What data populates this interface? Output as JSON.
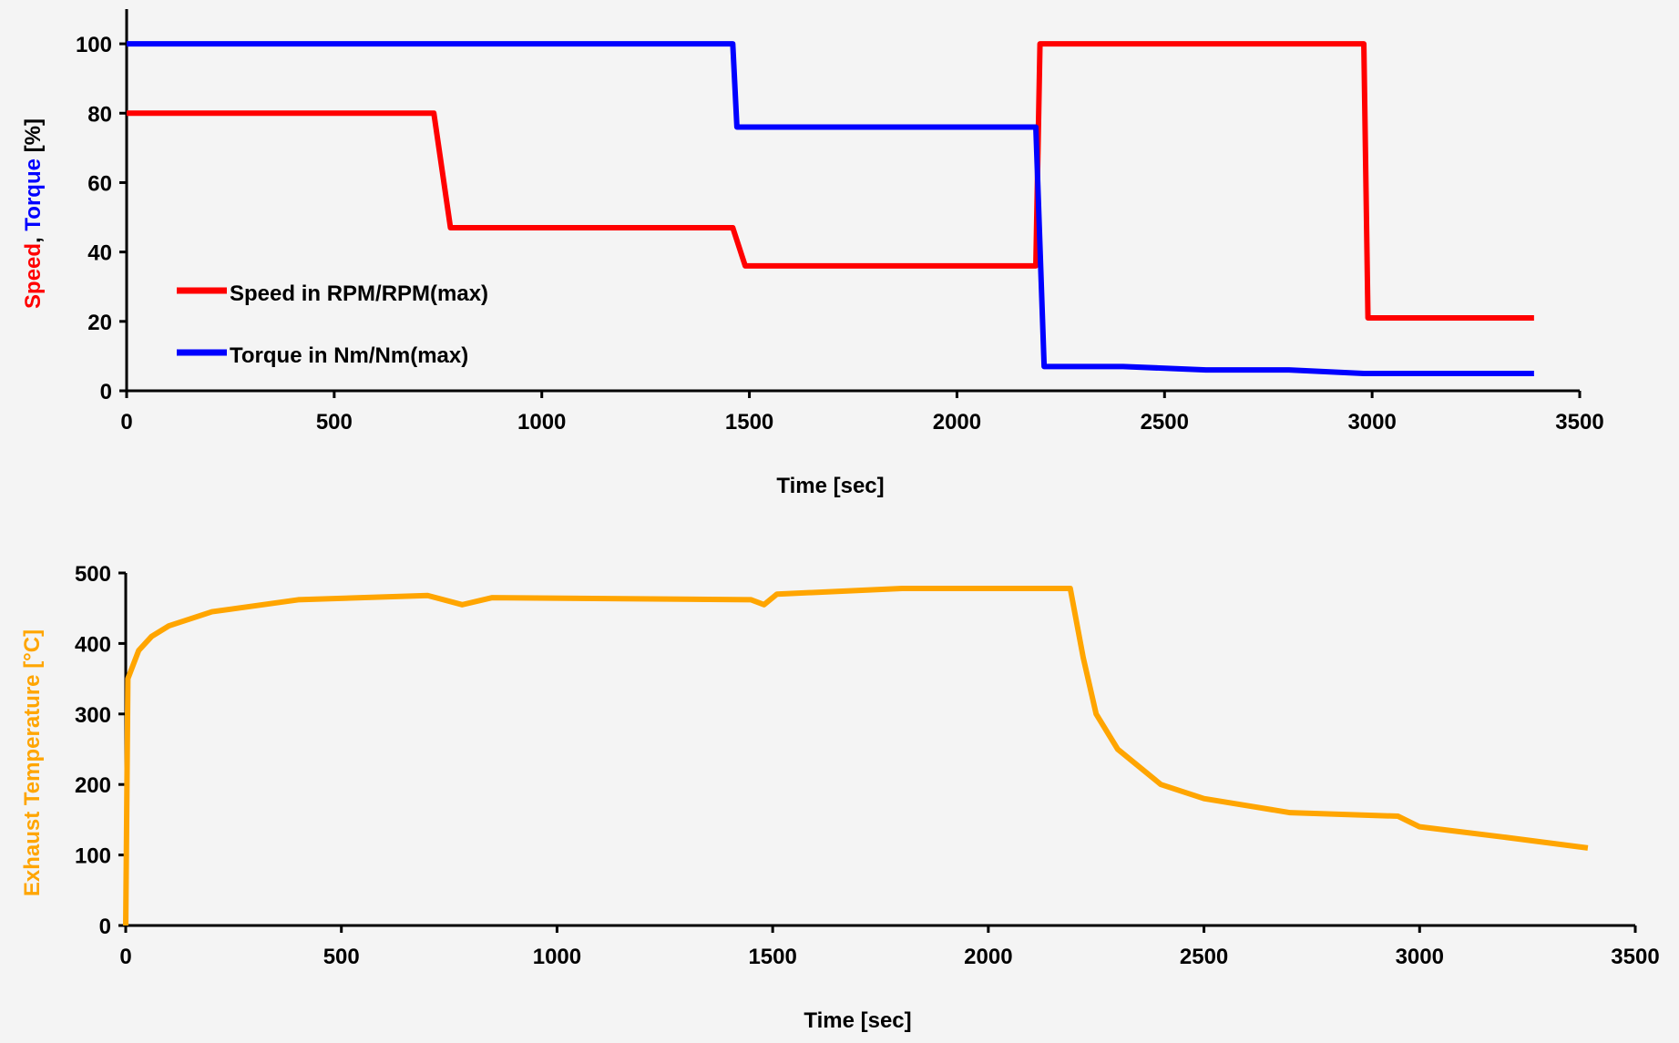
{
  "chart_data": [
    {
      "type": "line",
      "xlabel": "Time [sec]",
      "ylabel": [
        {
          "text": "Speed",
          "color": "#ff0000"
        },
        {
          "text": ", ",
          "color": "#000000"
        },
        {
          "text": "Torque",
          "color": "#0000ff"
        },
        {
          "text": " [%]",
          "color": "#000000"
        }
      ],
      "xlim": [
        0,
        3500
      ],
      "xticks": [
        0,
        500,
        1000,
        1500,
        2000,
        2500,
        3000,
        3500
      ],
      "ylim": [
        0,
        110
      ],
      "yticks": [
        0,
        20,
        40,
        60,
        80,
        100
      ],
      "legend": "lower left",
      "grid": false,
      "series": [
        {
          "name": "Speed in RPM/RPM(max)",
          "color": "#ff0000",
          "x": [
            0,
            740,
            780,
            1460,
            1490,
            2190,
            2200,
            2980,
            2990,
            3390
          ],
          "values": [
            80,
            80,
            47,
            47,
            36,
            36,
            100,
            100,
            21,
            21
          ]
        },
        {
          "name": "Torque in Nm/Nm(max)",
          "color": "#0000ff",
          "x": [
            0,
            1460,
            1470,
            2190,
            2210,
            2400,
            2600,
            2800,
            2980,
            2990,
            3390
          ],
          "values": [
            100,
            100,
            76,
            76,
            7,
            7,
            6,
            6,
            5,
            5,
            5
          ]
        }
      ]
    },
    {
      "type": "line",
      "xlabel": "Time [sec]",
      "ylabel": [
        {
          "text": "Exhaust Temperature [°C]",
          "color": "#ffa500"
        }
      ],
      "xlim": [
        0,
        3500
      ],
      "xticks": [
        0,
        500,
        1000,
        1500,
        2000,
        2500,
        3000,
        3500
      ],
      "ylim": [
        0,
        500
      ],
      "yticks": [
        0,
        100,
        200,
        300,
        400,
        500
      ],
      "grid": false,
      "series": [
        {
          "color": "#ffa500",
          "x": [
            0,
            5,
            30,
            60,
            100,
            200,
            400,
            700,
            780,
            850,
            1450,
            1480,
            1510,
            1800,
            2190,
            2220,
            2250,
            2300,
            2400,
            2500,
            2700,
            2950,
            3000,
            3200,
            3390
          ],
          "values": [
            0,
            350,
            390,
            410,
            425,
            445,
            462,
            468,
            455,
            465,
            462,
            455,
            470,
            478,
            478,
            380,
            300,
            250,
            200,
            180,
            160,
            155,
            140,
            125,
            110
          ]
        }
      ]
    }
  ]
}
